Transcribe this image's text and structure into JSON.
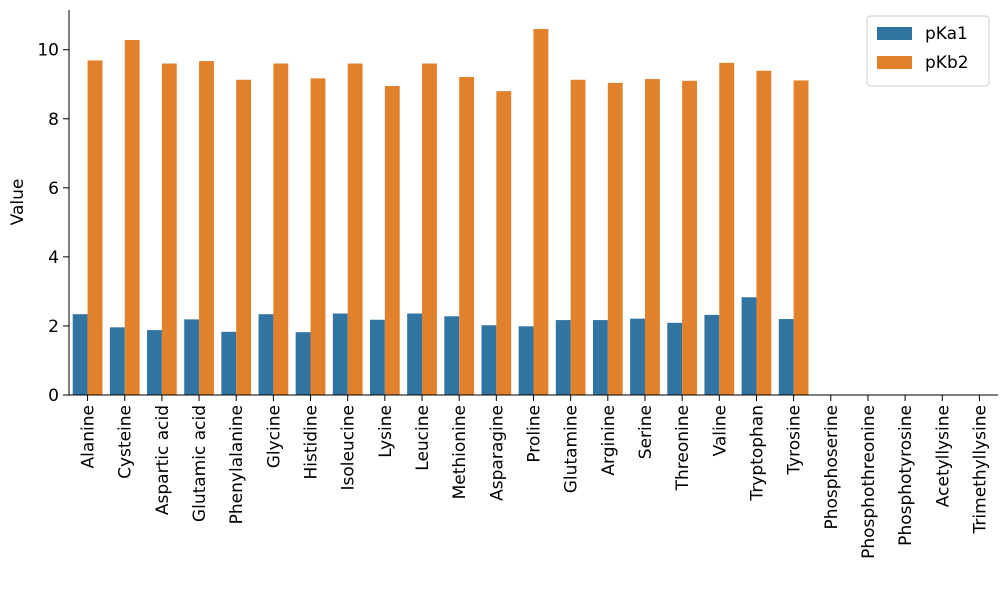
{
  "chart_data": {
    "type": "bar",
    "title": "",
    "xlabel": "",
    "ylabel": "Value",
    "ylim": [
      0,
      11.15
    ],
    "yticks": [
      0,
      2,
      4,
      6,
      8,
      10
    ],
    "grid": false,
    "legend": "top-right",
    "categories": [
      "Alanine",
      "Cysteine",
      "Aspartic acid",
      "Glutamic acid",
      "Phenylalanine",
      "Glycine",
      "Histidine",
      "Isoleucine",
      "Lysine",
      "Leucine",
      "Methionine",
      "Asparagine",
      "Proline",
      "Glutamine",
      "Arginine",
      "Serine",
      "Threonine",
      "Valine",
      "Tryptophan",
      "Tyrosine",
      "Phosphoserine",
      "Phosphothreonine",
      "Phosphotyrosine",
      "Acetyllysine",
      "Trimethyllysine"
    ],
    "series": [
      {
        "name": "pKa1",
        "color": "#3274a1",
        "values": [
          2.34,
          1.96,
          1.88,
          2.19,
          1.83,
          2.34,
          1.82,
          2.36,
          2.18,
          2.36,
          2.28,
          2.02,
          1.99,
          2.17,
          2.17,
          2.21,
          2.09,
          2.32,
          2.83,
          2.2,
          0,
          0,
          0,
          0,
          0
        ]
      },
      {
        "name": "pKb2",
        "color": "#e1812c",
        "values": [
          9.69,
          10.28,
          9.6,
          9.67,
          9.13,
          9.6,
          9.17,
          9.6,
          8.95,
          9.6,
          9.21,
          8.8,
          10.6,
          9.13,
          9.04,
          9.15,
          9.1,
          9.62,
          9.39,
          9.11,
          0,
          0,
          0,
          0,
          0
        ]
      }
    ]
  }
}
